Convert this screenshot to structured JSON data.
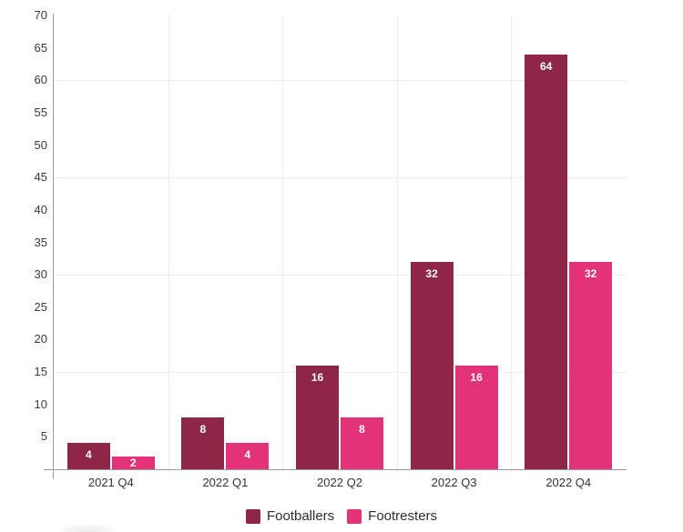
{
  "chart_data": {
    "type": "bar",
    "title": "",
    "xlabel": "",
    "ylabel": "",
    "categories": [
      "2021 Q4",
      "2022 Q1",
      "2022 Q2",
      "2022 Q3",
      "2022 Q4"
    ],
    "series": [
      {
        "name": "Footballers",
        "color": "#8e2648",
        "values": [
          4,
          8,
          16,
          32,
          64
        ]
      },
      {
        "name": "Footresters",
        "color": "#e23278",
        "values": [
          2,
          4,
          8,
          16,
          32
        ]
      }
    ],
    "bar_value_labels": [
      [
        "4",
        "8",
        "16",
        "32",
        "64"
      ],
      [
        "2",
        "4",
        "8",
        "16",
        "32"
      ]
    ],
    "value_label_color": "#ffffff",
    "ylim": [
      0,
      70
    ],
    "yticks": [
      5,
      10,
      15,
      20,
      25,
      30,
      35,
      40,
      45,
      50,
      55,
      60,
      65,
      70
    ],
    "ygrid_values": [
      15,
      30,
      45,
      60
    ],
    "grid": "on",
    "legend_position": "bottom",
    "legend_items": [
      "Footballers",
      "Footresters"
    ],
    "colors": {
      "axis": "#9b9b9b",
      "grid": "#ececec",
      "tick_label": "#3a3a3a",
      "category_label": "#333333"
    }
  }
}
